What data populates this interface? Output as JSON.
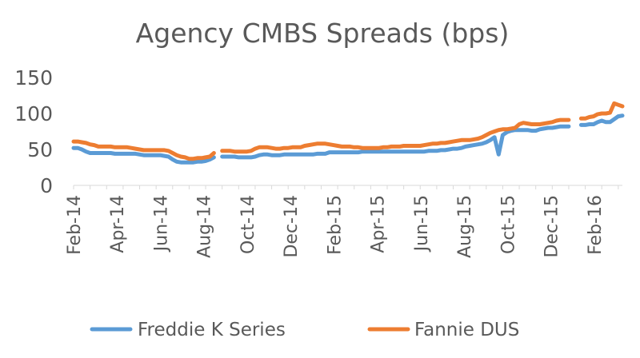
{
  "chart_data": {
    "type": "line",
    "title": "Agency CMBS Spreads (bps)",
    "xlabel": "",
    "ylabel": "",
    "ylim": [
      0,
      150
    ],
    "y_ticks": [
      "150",
      "100",
      "50",
      "0"
    ],
    "x_tick_labels": [
      "Feb-14",
      "Apr-14",
      "Jun-14",
      "Aug-14",
      "Oct-14",
      "Dec-14",
      "Feb-15",
      "Apr-15",
      "Jun-15",
      "Aug-15",
      "Oct-15",
      "Dec-15",
      "Feb-16"
    ],
    "grid": false,
    "legend_position": "bottom",
    "x_start": "2014-02-01",
    "x_step_weeks": 1,
    "series": [
      {
        "name": "Freddie K Series",
        "color": "#5B9BD5",
        "values": [
          52,
          52,
          50,
          47,
          45,
          45,
          45,
          45,
          45,
          45,
          44,
          44,
          44,
          44,
          44,
          44,
          43,
          42,
          42,
          42,
          42,
          42,
          41,
          40,
          36,
          33,
          32,
          32,
          32,
          32,
          33,
          33,
          34,
          36,
          39,
          null,
          40,
          40,
          40,
          40,
          39,
          39,
          39,
          39,
          40,
          42,
          43,
          43,
          42,
          42,
          42,
          43,
          43,
          43,
          43,
          43,
          43,
          43,
          43,
          44,
          44,
          44,
          46,
          46,
          46,
          46,
          46,
          46,
          46,
          46,
          47,
          47,
          47,
          47,
          47,
          47,
          47,
          47,
          47,
          47,
          47,
          47,
          47,
          47,
          47,
          47,
          48,
          48,
          48,
          49,
          49,
          50,
          51,
          51,
          52,
          54,
          55,
          56,
          57,
          58,
          60,
          63,
          67,
          43,
          70,
          74,
          76,
          77,
          77,
          77,
          77,
          76,
          76,
          78,
          79,
          80,
          80,
          81,
          82,
          82,
          82,
          null,
          null,
          84,
          84,
          85,
          85,
          88,
          90,
          88,
          88,
          92,
          96,
          97
        ]
      },
      {
        "name": "Fannie DUS",
        "color": "#ED7D31",
        "values": [
          61,
          61,
          60,
          59,
          57,
          56,
          54,
          54,
          54,
          54,
          53,
          53,
          53,
          53,
          52,
          51,
          50,
          49,
          49,
          49,
          49,
          49,
          49,
          48,
          45,
          42,
          40,
          39,
          37,
          37,
          38,
          38,
          39,
          40,
          45,
          null,
          48,
          48,
          48,
          47,
          47,
          47,
          47,
          48,
          51,
          53,
          53,
          53,
          52,
          51,
          51,
          52,
          52,
          53,
          53,
          53,
          55,
          56,
          57,
          58,
          58,
          58,
          57,
          56,
          55,
          54,
          54,
          54,
          53,
          53,
          52,
          52,
          52,
          52,
          52,
          53,
          53,
          54,
          54,
          54,
          55,
          55,
          55,
          55,
          55,
          56,
          57,
          58,
          58,
          59,
          59,
          60,
          61,
          62,
          63,
          63,
          63,
          64,
          65,
          67,
          70,
          73,
          75,
          77,
          78,
          78,
          79,
          80,
          85,
          87,
          86,
          85,
          85,
          85,
          86,
          87,
          88,
          90,
          91,
          91,
          91,
          null,
          null,
          93,
          93,
          95,
          96,
          99,
          100,
          100,
          101,
          114,
          112,
          110
        ]
      }
    ]
  }
}
